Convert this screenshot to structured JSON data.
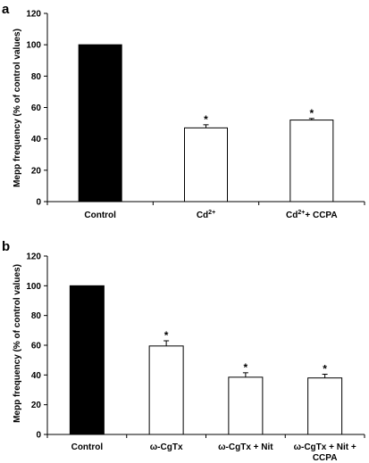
{
  "chart_data": [
    {
      "panel": "a",
      "type": "bar",
      "categories": [
        "Control",
        "Cd",
        "Cd + CCPA"
      ],
      "category_display": [
        {
          "base": "Control",
          "sup": ""
        },
        {
          "base": "Cd",
          "sup": "2+"
        },
        {
          "base": "Cd",
          "sup": "2+",
          "tail": "+ CCPA"
        }
      ],
      "values": [
        100,
        47,
        52
      ],
      "errors": [
        0,
        2,
        1
      ],
      "significance": [
        "",
        "*",
        "*"
      ],
      "bar_fill": [
        "#000000",
        "#ffffff",
        "#ffffff"
      ],
      "ylabel": "Mepp frequency (% of control values)",
      "ylim": [
        0,
        120
      ],
      "yticks": [
        0,
        20,
        40,
        60,
        80,
        100,
        120
      ],
      "grid": false
    },
    {
      "panel": "b",
      "type": "bar",
      "categories": [
        "Control",
        "ω-CgTx",
        "ω-CgTx + Nit",
        "ω-CgTx + Nit + CCPA"
      ],
      "category_display": [
        {
          "lines": [
            "Control"
          ]
        },
        {
          "lines": [
            "ω-CgTx"
          ]
        },
        {
          "lines": [
            "ω-CgTx + Nit"
          ]
        },
        {
          "lines": [
            "ω-CgTx + Nit +",
            "CCPA"
          ]
        }
      ],
      "values": [
        100,
        59.5,
        38.5,
        38
      ],
      "errors": [
        0,
        3.5,
        3,
        2.5
      ],
      "significance": [
        "",
        "*",
        "*",
        "*"
      ],
      "bar_fill": [
        "#000000",
        "#ffffff",
        "#ffffff",
        "#ffffff"
      ],
      "ylabel": "Mepp frequency (% of control values)",
      "ylim": [
        0,
        120
      ],
      "yticks": [
        0,
        20,
        40,
        60,
        80,
        100,
        120
      ],
      "grid": false
    }
  ]
}
